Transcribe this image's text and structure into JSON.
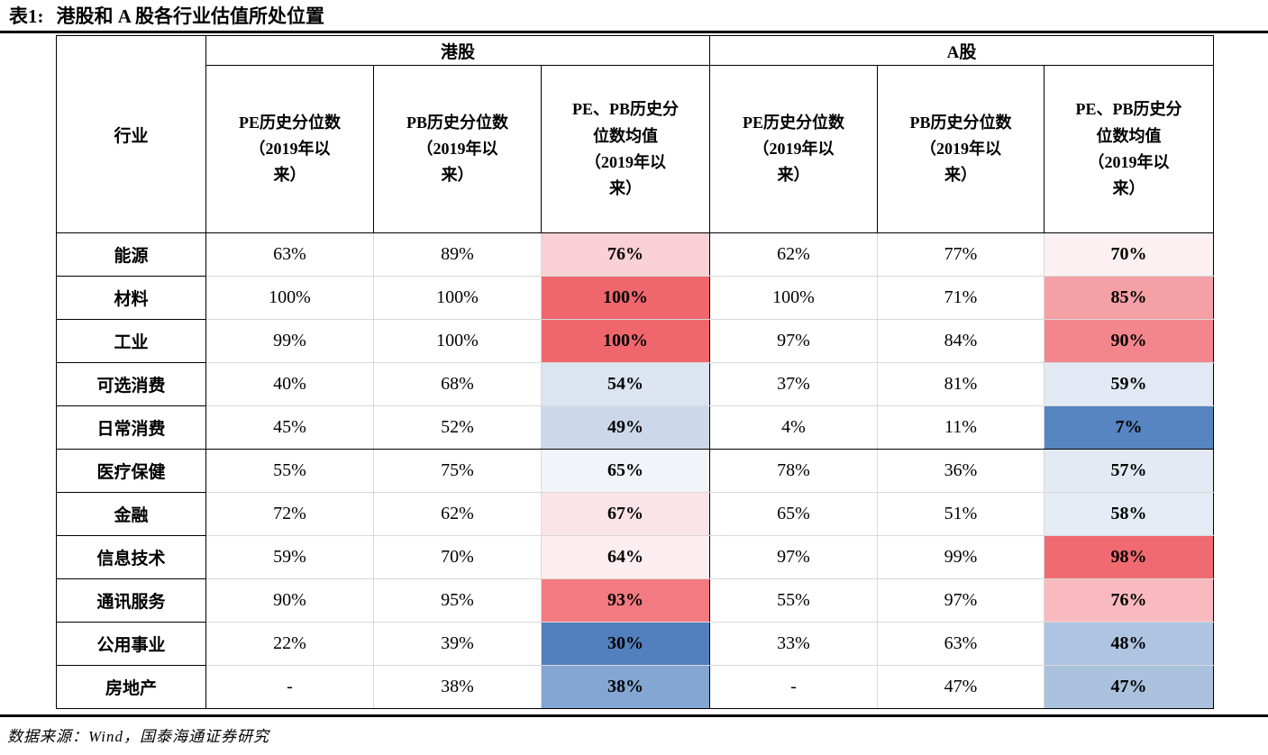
{
  "title": {
    "prefix": "表1:",
    "text": "港股和 A 股各行业估值所处位置"
  },
  "source_note": "数据来源：Wind，国泰海通证券研究",
  "table": {
    "industry_header": "行业",
    "hk_group_label": "港股",
    "a_group_label": "A股",
    "sub_headers": [
      "PE历史分位数\n（2019年以\n来）",
      "PB历史分位数\n（2019年以\n来）",
      "PE、PB历史分\n位数均值\n（2019年以\n来）",
      "PE历史分位数\n（2019年以\n来）",
      "PB历史分位数\n（2019年以\n来）",
      "PE、PB历史分\n位数均值\n（2019年以\n来）"
    ],
    "heat_colors": {
      "max_red": "#ef676d",
      "mid_white": "#ffffff",
      "min_blue": "#527fbd"
    },
    "rows": [
      {
        "industry": "能源",
        "hk_pe": "63%",
        "hk_pb": "89%",
        "hk_avg": "76%",
        "hk_avg_bg": "#f9d0d6",
        "a_pe": "62%",
        "a_pb": "77%",
        "a_avg": "70%",
        "a_avg_bg": "#fdf0f3",
        "separator_below": false
      },
      {
        "industry": "材料",
        "hk_pe": "100%",
        "hk_pb": "100%",
        "hk_avg": "100%",
        "hk_avg_bg": "#ef676d",
        "a_pe": "100%",
        "a_pb": "71%",
        "a_avg": "85%",
        "a_avg_bg": "#f5a0a5",
        "separator_below": false
      },
      {
        "industry": "工业",
        "hk_pe": "99%",
        "hk_pb": "100%",
        "hk_avg": "100%",
        "hk_avg_bg": "#ef676d",
        "a_pe": "97%",
        "a_pb": "84%",
        "a_avg": "90%",
        "a_avg_bg": "#f3868c",
        "separator_below": false
      },
      {
        "industry": "可选消费",
        "hk_pe": "40%",
        "hk_pb": "68%",
        "hk_avg": "54%",
        "hk_avg_bg": "#dce4f0",
        "a_pe": "37%",
        "a_pb": "81%",
        "a_avg": "59%",
        "a_avg_bg": "#e3e9f4",
        "separator_below": false
      },
      {
        "industry": "日常消费",
        "hk_pe": "45%",
        "hk_pb": "52%",
        "hk_avg": "49%",
        "hk_avg_bg": "#ccd8ea",
        "a_pe": "4%",
        "a_pb": "11%",
        "a_avg": "7%",
        "a_avg_bg": "#5685c1",
        "separator_below": true
      },
      {
        "industry": "医疗保健",
        "hk_pe": "55%",
        "hk_pb": "75%",
        "hk_avg": "65%",
        "hk_avg_bg": "#f1f5fa",
        "a_pe": "78%",
        "a_pb": "36%",
        "a_avg": "57%",
        "a_avg_bg": "#e3eaf4",
        "separator_below": false
      },
      {
        "industry": "金融",
        "hk_pe": "72%",
        "hk_pb": "62%",
        "hk_avg": "67%",
        "hk_avg_bg": "#fbe4e7",
        "a_pe": "65%",
        "a_pb": "51%",
        "a_avg": "58%",
        "a_avg_bg": "#e5ebf5",
        "separator_below": false
      },
      {
        "industry": "信息技术",
        "hk_pe": "59%",
        "hk_pb": "70%",
        "hk_avg": "64%",
        "hk_avg_bg": "#fcedf0",
        "a_pe": "97%",
        "a_pb": "99%",
        "a_avg": "98%",
        "a_avg_bg": "#f06b71",
        "separator_below": false
      },
      {
        "industry": "通讯服务",
        "hk_pe": "90%",
        "hk_pb": "95%",
        "hk_avg": "93%",
        "hk_avg_bg": "#f37a80",
        "a_pe": "55%",
        "a_pb": "97%",
        "a_avg": "76%",
        "a_avg_bg": "#f9babf",
        "separator_below": false
      },
      {
        "industry": "公用事业",
        "hk_pe": "22%",
        "hk_pb": "39%",
        "hk_avg": "30%",
        "hk_avg_bg": "#527fbd",
        "a_pe": "33%",
        "a_pb": "63%",
        "a_avg": "48%",
        "a_avg_bg": "#aec5e1",
        "separator_below": false
      },
      {
        "industry": "房地产",
        "hk_pe": "-",
        "hk_pb": "38%",
        "hk_avg": "38%",
        "hk_avg_bg": "#83a6d3",
        "a_pe": "-",
        "a_pb": "47%",
        "a_avg": "47%",
        "a_avg_bg": "#abc2de",
        "separator_below": false
      }
    ]
  }
}
